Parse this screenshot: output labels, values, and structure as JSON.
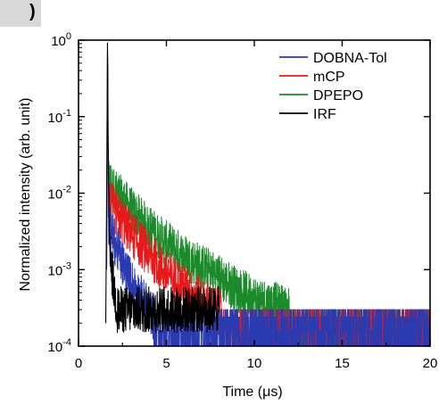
{
  "panel_label": ")",
  "chart_data": {
    "type": "line",
    "title": "",
    "xlabel": "Time (μs)",
    "ylabel": "Normalized intensity (arb. unit)",
    "xlim": [
      0,
      20
    ],
    "ylim": [
      0.0001,
      1
    ],
    "yscale": "log",
    "xticks": [
      0,
      5,
      10,
      15,
      20
    ],
    "yticks": [
      {
        "value": 1,
        "base": "10",
        "exp": "0"
      },
      {
        "value": 0.1,
        "base": "10",
        "exp": "-1"
      },
      {
        "value": 0.01,
        "base": "10",
        "exp": "-2"
      },
      {
        "value": 0.001,
        "base": "10",
        "exp": "-3"
      },
      {
        "value": 0.0001,
        "base": "10",
        "exp": "-4"
      }
    ],
    "grid": false,
    "legend_position": "top-right",
    "series": [
      {
        "name": "DOBNA-Tol",
        "color": "#2a3ab0",
        "x": [
          1.6,
          1.65,
          1.7,
          2.0,
          2.5,
          3.0,
          3.5,
          4.0,
          4.5,
          5.0,
          5.5
        ],
        "y": [
          0.001,
          0.9,
          0.004,
          0.0025,
          0.0012,
          0.0007,
          0.00045,
          0.0003,
          0.0002,
          0.00015,
          0.0001
        ],
        "noise_floor": 0.0002
      },
      {
        "name": "mCP",
        "color": "#e8191b",
        "x": [
          1.6,
          1.65,
          1.7,
          2.0,
          3.0,
          4.0,
          5.0,
          6.0,
          7.0,
          8.0,
          9.0
        ],
        "y": [
          0.001,
          0.9,
          0.009,
          0.006,
          0.003,
          0.0016,
          0.0009,
          0.0006,
          0.0004,
          0.00028,
          0.0002
        ],
        "noise_floor": 0.00022
      },
      {
        "name": "DPEPO",
        "color": "#1a8a2a",
        "x": [
          1.6,
          1.65,
          1.7,
          2.0,
          3.0,
          4.0,
          5.0,
          6.0,
          7.0,
          8.0,
          9.0,
          10.0,
          12.0,
          14.0,
          20.0
        ],
        "y": [
          0.001,
          1.0,
          0.016,
          0.011,
          0.006,
          0.0035,
          0.0022,
          0.0015,
          0.0011,
          0.0008,
          0.00055,
          0.00042,
          0.0003,
          0.00025,
          0.00022
        ],
        "noise_floor": 0.00025
      },
      {
        "name": "IRF",
        "color": "#000000",
        "x": [
          1.55,
          1.6,
          1.65,
          1.7,
          1.8,
          2.0,
          2.2
        ],
        "y": [
          0.0002,
          0.01,
          1.0,
          0.01,
          0.0015,
          0.0006,
          0.0003
        ],
        "noise_floor": 0.00015
      }
    ]
  }
}
